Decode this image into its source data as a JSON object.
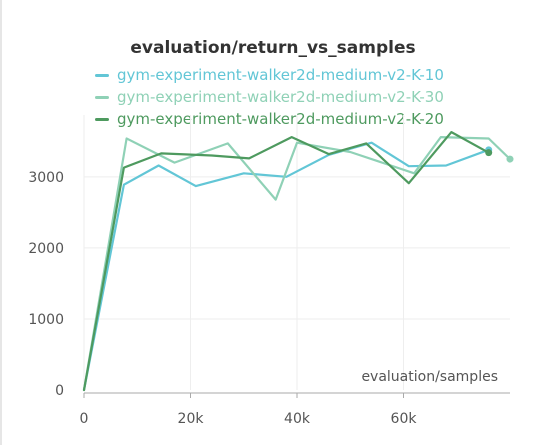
{
  "chart_data": {
    "type": "line",
    "title": "evaluation/return_vs_samples",
    "xlabel": "evaluation/samples",
    "ylabel": "",
    "xlim": [
      0,
      80000
    ],
    "ylim": [
      0,
      3800
    ],
    "xticks": [
      0,
      20000,
      40000,
      60000
    ],
    "xtick_labels": [
      "0",
      "20k",
      "40k",
      "60k"
    ],
    "yticks": [
      0,
      1000,
      2000,
      3000
    ],
    "ytick_labels": [
      "0",
      "1000",
      "2000",
      "3000"
    ],
    "grid": true,
    "legend": "top",
    "series": [
      {
        "name": "gym-experiment-walker2d-medium-v2-K-10",
        "color": "#62c6d6",
        "x": [
          0,
          7500,
          14000,
          21000,
          30000,
          38000,
          46000,
          54000,
          61000,
          68000,
          76000
        ],
        "y": [
          0,
          2890,
          3160,
          2870,
          3050,
          3000,
          3310,
          3480,
          3150,
          3160,
          3380
        ]
      },
      {
        "name": "gym-experiment-walker2d-medium-v2-K-30",
        "color": "#8fd1b6",
        "x": [
          0,
          8000,
          17000,
          27000,
          36000,
          40000,
          50000,
          62000,
          67000,
          76000,
          80000
        ],
        "y": [
          0,
          3540,
          3200,
          3470,
          2680,
          3480,
          3350,
          3050,
          3560,
          3540,
          3250
        ]
      },
      {
        "name": "gym-experiment-walker2d-medium-v2-K-20",
        "color": "#4e9a5f",
        "x": [
          0,
          7500,
          14500,
          24000,
          31000,
          39000,
          46000,
          53000,
          61000,
          69000,
          76000
        ],
        "y": [
          0,
          3130,
          3330,
          3300,
          3260,
          3560,
          3320,
          3470,
          2910,
          3630,
          3340
        ]
      }
    ]
  }
}
